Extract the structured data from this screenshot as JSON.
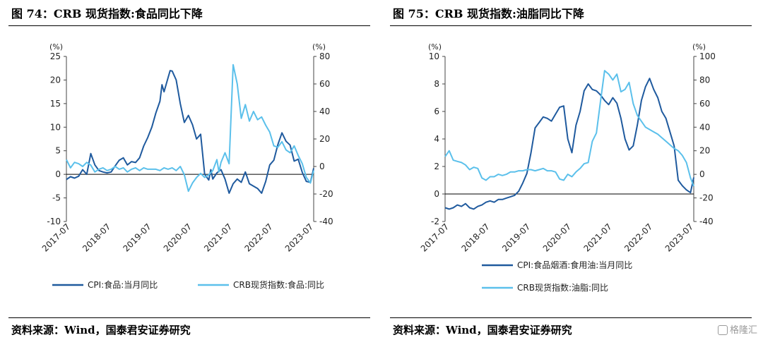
{
  "charts": [
    {
      "title": "图 74：CRB 现货指数:食品同比下降",
      "source": "资料来源：Wind，国泰君安证券研究",
      "chart_data": {
        "type": "line",
        "left_unit": "(%)",
        "right_unit": "(%)",
        "ylim_left": [
          -10,
          25
        ],
        "ylim_right": [
          -40,
          80
        ],
        "yticks_left": [
          25,
          20,
          15,
          10,
          5,
          0,
          -5,
          -10
        ],
        "yticks_right": [
          80,
          60,
          40,
          20,
          0,
          -20,
          -40
        ],
        "x_labels": [
          "2017-07",
          "2018-07",
          "2019-07",
          "2020-07",
          "2021-07",
          "2022-07",
          "2023-07"
        ],
        "x_range": [
          2017.5,
          2023.58
        ],
        "zero_line": true,
        "series": [
          {
            "name": "CPI:食品:当月同比",
            "axis": "left",
            "color": "#1f5a9e",
            "x": [
              2017.5,
              2017.6,
              2017.7,
              2017.8,
              2017.9,
              2018.0,
              2018.1,
              2018.2,
              2018.3,
              2018.4,
              2018.5,
              2018.6,
              2018.7,
              2018.8,
              2018.9,
              2019.0,
              2019.1,
              2019.2,
              2019.3,
              2019.4,
              2019.5,
              2019.6,
              2019.7,
              2019.8,
              2019.85,
              2019.9,
              2020.0,
              2020.05,
              2020.1,
              2020.2,
              2020.3,
              2020.4,
              2020.5,
              2020.6,
              2020.7,
              2020.8,
              2020.9,
              2021.0,
              2021.05,
              2021.1,
              2021.2,
              2021.3,
              2021.4,
              2021.5,
              2021.6,
              2021.7,
              2021.8,
              2021.9,
              2022.0,
              2022.1,
              2022.2,
              2022.3,
              2022.4,
              2022.5,
              2022.6,
              2022.7,
              2022.8,
              2022.9,
              2023.0,
              2023.1,
              2023.2,
              2023.3,
              2023.4,
              2023.5,
              2023.58
            ],
            "y": [
              -1.1,
              -0.5,
              -0.8,
              -0.4,
              1.0,
              0.0,
              4.4,
              2.0,
              0.8,
              0.5,
              0.3,
              0.5,
              1.8,
              3.0,
              3.5,
              2.0,
              2.7,
              2.5,
              3.5,
              6.0,
              7.8,
              10.0,
              13.0,
              15.5,
              19.0,
              17.5,
              20.5,
              22.0,
              21.9,
              20.0,
              15.0,
              11.0,
              12.5,
              10.5,
              7.5,
              8.5,
              0.0,
              -1.2,
              1.0,
              -1.0,
              0.3,
              1.0,
              -1.0,
              -4.0,
              -2.0,
              -1.0,
              -1.7,
              0.5,
              -2.0,
              -2.5,
              -3.0,
              -4.0,
              -1.5,
              2.0,
              3.0,
              6.3,
              8.8,
              7.0,
              6.2,
              2.8,
              3.2,
              0.4,
              -1.5,
              -1.7,
              1.3
            ]
          },
          {
            "name": "CRB现货指数:食品:同比",
            "axis": "right",
            "color": "#5bc0eb",
            "x": [
              2017.5,
              2017.6,
              2017.7,
              2017.8,
              2017.9,
              2018.0,
              2018.1,
              2018.2,
              2018.3,
              2018.4,
              2018.5,
              2018.6,
              2018.7,
              2018.8,
              2018.9,
              2019.0,
              2019.1,
              2019.2,
              2019.3,
              2019.4,
              2019.5,
              2019.6,
              2019.7,
              2019.8,
              2019.9,
              2020.0,
              2020.1,
              2020.2,
              2020.3,
              2020.4,
              2020.5,
              2020.6,
              2020.7,
              2020.8,
              2020.9,
              2021.0,
              2021.1,
              2021.2,
              2021.25,
              2021.3,
              2021.4,
              2021.5,
              2021.6,
              2021.7,
              2021.8,
              2021.9,
              2022.0,
              2022.1,
              2022.2,
              2022.3,
              2022.4,
              2022.5,
              2022.6,
              2022.7,
              2022.8,
              2022.9,
              2023.0,
              2023.1,
              2023.2,
              2023.3,
              2023.4,
              2023.5,
              2023.58
            ],
            "y": [
              5,
              -1,
              3,
              2,
              0,
              3,
              1,
              -4,
              -2,
              -1,
              -3,
              -2,
              0,
              -2,
              -1,
              -4,
              -2,
              -1,
              -3,
              -1,
              -2,
              -2,
              -2,
              -3,
              -1,
              -2,
              -1,
              -3,
              0,
              -6,
              -18,
              -12,
              -8,
              -5,
              -8,
              -6,
              -3,
              5,
              -4,
              3,
              10,
              2,
              74,
              60,
              35,
              45,
              33,
              40,
              34,
              36,
              30,
              25,
              15,
              14,
              18,
              12,
              10,
              15,
              8,
              2,
              -8,
              -12,
              -3
            ]
          }
        ],
        "legend": [
          "CPI:食品:当月同比",
          "CRB现货指数:食品:同比"
        ]
      }
    },
    {
      "title": "图 75：CRB 现货指数:油脂同比下降",
      "source": "资料来源：Wind，国泰君安证券研究",
      "chart_data": {
        "type": "line",
        "left_unit": "(%)",
        "right_unit": "(%)",
        "ylim_left": [
          -2,
          10
        ],
        "ylim_right": [
          -40,
          100
        ],
        "yticks_left": [
          10,
          8,
          6,
          4,
          2,
          0,
          -2
        ],
        "yticks_right": [
          100,
          80,
          60,
          40,
          20,
          0,
          -20,
          -40
        ],
        "x_labels": [
          "2017-07",
          "2018-07",
          "2019-07",
          "2020-07",
          "2021-07",
          "2022-07",
          "2023-07"
        ],
        "x_range": [
          2017.5,
          2023.58
        ],
        "zero_line": true,
        "series": [
          {
            "name": "CPI:食品烟酒:食用油:当月同比",
            "axis": "left",
            "color": "#1f5a9e",
            "x": [
              2017.5,
              2017.6,
              2017.7,
              2017.8,
              2017.9,
              2018.0,
              2018.1,
              2018.2,
              2018.3,
              2018.4,
              2018.5,
              2018.6,
              2018.7,
              2018.8,
              2018.9,
              2019.0,
              2019.1,
              2019.2,
              2019.3,
              2019.4,
              2019.5,
              2019.6,
              2019.7,
              2019.8,
              2019.9,
              2020.0,
              2020.1,
              2020.2,
              2020.3,
              2020.4,
              2020.5,
              2020.6,
              2020.7,
              2020.8,
              2020.9,
              2021.0,
              2021.1,
              2021.2,
              2021.3,
              2021.4,
              2021.5,
              2021.6,
              2021.7,
              2021.8,
              2021.9,
              2022.0,
              2022.1,
              2022.2,
              2022.3,
              2022.4,
              2022.5,
              2022.6,
              2022.7,
              2022.8,
              2022.9,
              2023.0,
              2023.1,
              2023.2,
              2023.3,
              2023.4,
              2023.5,
              2023.58
            ],
            "y": [
              -1.0,
              -1.1,
              -1.0,
              -0.8,
              -0.9,
              -0.7,
              -1.0,
              -1.1,
              -0.9,
              -0.8,
              -0.6,
              -0.5,
              -0.6,
              -0.4,
              -0.4,
              -0.3,
              -0.2,
              -0.1,
              0.2,
              0.8,
              1.5,
              3.0,
              4.8,
              5.2,
              5.6,
              5.5,
              5.3,
              5.8,
              6.3,
              6.4,
              4.0,
              3.0,
              5.0,
              6.0,
              7.5,
              8.0,
              7.6,
              7.5,
              7.2,
              6.8,
              6.5,
              7.0,
              6.6,
              5.5,
              4.0,
              3.2,
              3.5,
              5.0,
              6.8,
              7.8,
              8.4,
              7.6,
              7.0,
              6.0,
              5.5,
              4.5,
              3.5,
              1.0,
              0.6,
              0.3,
              0.1,
              1.2
            ]
          },
          {
            "name": "CRB现货指数:油脂:同比",
            "axis": "right",
            "color": "#5bc0eb",
            "x": [
              2017.5,
              2017.6,
              2017.7,
              2017.8,
              2017.9,
              2018.0,
              2018.1,
              2018.2,
              2018.3,
              2018.4,
              2018.5,
              2018.6,
              2018.7,
              2018.8,
              2018.9,
              2019.0,
              2019.1,
              2019.2,
              2019.3,
              2019.4,
              2019.5,
              2019.6,
              2019.7,
              2019.8,
              2019.9,
              2020.0,
              2020.1,
              2020.2,
              2020.3,
              2020.4,
              2020.5,
              2020.6,
              2020.7,
              2020.8,
              2020.9,
              2021.0,
              2021.1,
              2021.2,
              2021.3,
              2021.4,
              2021.5,
              2021.6,
              2021.7,
              2021.8,
              2021.9,
              2022.0,
              2022.1,
              2022.2,
              2022.3,
              2022.4,
              2022.5,
              2022.6,
              2022.7,
              2022.8,
              2022.9,
              2023.0,
              2023.1,
              2023.2,
              2023.3,
              2023.4,
              2023.5,
              2023.58
            ],
            "y": [
              15,
              20,
              12,
              11,
              10,
              8,
              4,
              6,
              5,
              -3,
              -5,
              -2,
              -2,
              0,
              -1,
              0,
              2,
              2,
              3,
              3,
              4,
              4,
              3,
              4,
              5,
              3,
              3,
              2,
              -4,
              -5,
              0,
              -2,
              2,
              5,
              9,
              10,
              28,
              35,
              62,
              88,
              85,
              80,
              85,
              70,
              72,
              78,
              60,
              50,
              45,
              40,
              38,
              36,
              34,
              31,
              28,
              25,
              22,
              20,
              16,
              10,
              -3,
              -10
            ]
          }
        ],
        "legend": [
          "CPI:食品烟酒:食用油:当月同比",
          "CRB现货指数:油脂:同比"
        ]
      }
    }
  ],
  "watermark": {
    "icon": "gelonghui-logo-icon",
    "text": "格隆汇"
  }
}
